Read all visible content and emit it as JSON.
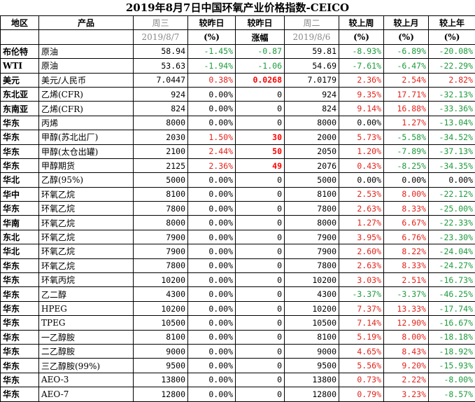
{
  "title": "2019年8月7日中国环氧产业价格指数-CEICO",
  "header": {
    "row1": [
      "地区",
      "产品",
      "周三",
      "较昨日",
      "较昨日",
      "周二",
      "较上周",
      "较上月",
      "较上年"
    ],
    "row2": [
      "",
      "",
      "2019/8/7",
      "(%)",
      "涨幅",
      "2019/8/6",
      "(%)",
      "(%)",
      "(%)"
    ]
  },
  "colors": {
    "up": "#e3231b",
    "down": "#1d9b3c",
    "flat": "#000000",
    "header_gray": "#8a8a8a"
  },
  "rows": [
    {
      "region": "布伦特",
      "product": "原油",
      "price": "58.94",
      "dod_pct": "-1.45%",
      "dod_pct_c": "green",
      "dod_chg": "-0.87",
      "dod_chg_c": "green",
      "prev": "59.81",
      "wow": "-8.93%",
      "wow_c": "green",
      "mom": "-6.89%",
      "mom_c": "green",
      "yoy": "-20.08%",
      "yoy_c": "green"
    },
    {
      "region": "WTI",
      "product": "原油",
      "price": "53.63",
      "dod_pct": "-1.94%",
      "dod_pct_c": "green",
      "dod_chg": "-1.06",
      "dod_chg_c": "green",
      "prev": "54.69",
      "wow": "-7.61%",
      "wow_c": "green",
      "mom": "-6.47%",
      "mom_c": "green",
      "yoy": "-22.29%",
      "yoy_c": "green"
    },
    {
      "region": "美元",
      "product": "美元/人民币",
      "price": "7.0447",
      "dod_pct": "0.38%",
      "dod_pct_c": "red",
      "dod_chg": "0.0268",
      "dod_chg_c": "bigred",
      "prev": "7.0179",
      "wow": "2.36%",
      "wow_c": "red",
      "mom": "2.54%",
      "mom_c": "red",
      "yoy": "2.82%",
      "yoy_c": "red"
    },
    {
      "region": "东北亚",
      "product": "乙烯(CFR)",
      "price": "924",
      "dod_pct": "0.00%",
      "dod_pct_c": "black",
      "dod_chg": "0",
      "dod_chg_c": "black",
      "prev": "924",
      "wow": "9.35%",
      "wow_c": "red",
      "mom": "17.71%",
      "mom_c": "red",
      "yoy": "-32.13%",
      "yoy_c": "green"
    },
    {
      "region": "东南亚",
      "product": "乙烯(CFR)",
      "price": "824",
      "dod_pct": "0.00%",
      "dod_pct_c": "black",
      "dod_chg": "0",
      "dod_chg_c": "black",
      "prev": "824",
      "wow": "9.14%",
      "wow_c": "red",
      "mom": "16.88%",
      "mom_c": "red",
      "yoy": "-33.36%",
      "yoy_c": "green"
    },
    {
      "region": "华东",
      "product": "丙烯",
      "price": "8000",
      "dod_pct": "0.00%",
      "dod_pct_c": "black",
      "dod_chg": "0",
      "dod_chg_c": "black",
      "prev": "8000",
      "wow": "0.00%",
      "wow_c": "black",
      "mom": "1.27%",
      "mom_c": "red",
      "yoy": "-13.04%",
      "yoy_c": "green"
    },
    {
      "region": "华东",
      "product": "甲醇(苏北出厂)",
      "price": "2030",
      "dod_pct": "1.50%",
      "dod_pct_c": "red",
      "dod_chg": "30",
      "dod_chg_c": "bigred",
      "prev": "2000",
      "wow": "5.73%",
      "wow_c": "red",
      "mom": "-5.58%",
      "mom_c": "green",
      "yoy": "-34.52%",
      "yoy_c": "green"
    },
    {
      "region": "华东",
      "product": "甲醇(太仓出罐)",
      "price": "2100",
      "dod_pct": "2.44%",
      "dod_pct_c": "red",
      "dod_chg": "50",
      "dod_chg_c": "bigred",
      "prev": "2050",
      "wow": "1.20%",
      "wow_c": "red",
      "mom": "-7.89%",
      "mom_c": "green",
      "yoy": "-37.13%",
      "yoy_c": "green"
    },
    {
      "region": "华东",
      "product": "甲醇期货",
      "price": "2125",
      "dod_pct": "2.36%",
      "dod_pct_c": "red",
      "dod_chg": "49",
      "dod_chg_c": "bigred",
      "prev": "2076",
      "wow": "0.43%",
      "wow_c": "red",
      "mom": "-8.25%",
      "mom_c": "green",
      "yoy": "-34.35%",
      "yoy_c": "green"
    },
    {
      "region": "华北",
      "product": "乙醇(95%)",
      "price": "5000",
      "dod_pct": "0.00%",
      "dod_pct_c": "black",
      "dod_chg": "0",
      "dod_chg_c": "black",
      "prev": "5000",
      "wow": "0.00%",
      "wow_c": "black",
      "mom": "0.00%",
      "mom_c": "black",
      "yoy": "0.00%",
      "yoy_c": "black"
    },
    {
      "region": "华中",
      "product": "环氧乙烷",
      "price": "8100",
      "dod_pct": "0.00%",
      "dod_pct_c": "black",
      "dod_chg": "0",
      "dod_chg_c": "black",
      "prev": "8100",
      "wow": "2.53%",
      "wow_c": "red",
      "mom": "8.00%",
      "mom_c": "red",
      "yoy": "-22.12%",
      "yoy_c": "green"
    },
    {
      "region": "华东",
      "product": "环氧乙烷",
      "price": "7800",
      "dod_pct": "0.00%",
      "dod_pct_c": "black",
      "dod_chg": "0",
      "dod_chg_c": "black",
      "prev": "7800",
      "wow": "2.63%",
      "wow_c": "red",
      "mom": "8.33%",
      "mom_c": "red",
      "yoy": "-25.00%",
      "yoy_c": "green"
    },
    {
      "region": "华南",
      "product": "环氧乙烷",
      "price": "8000",
      "dod_pct": "0.00%",
      "dod_pct_c": "black",
      "dod_chg": "0",
      "dod_chg_c": "black",
      "prev": "8000",
      "wow": "1.27%",
      "wow_c": "red",
      "mom": "6.67%",
      "mom_c": "red",
      "yoy": "-22.33%",
      "yoy_c": "green"
    },
    {
      "region": "东北",
      "product": "环氧乙烷",
      "price": "7900",
      "dod_pct": "0.00%",
      "dod_pct_c": "black",
      "dod_chg": "0",
      "dod_chg_c": "black",
      "prev": "7900",
      "wow": "3.95%",
      "wow_c": "red",
      "mom": "6.76%",
      "mom_c": "red",
      "yoy": "-23.30%",
      "yoy_c": "green"
    },
    {
      "region": "华北",
      "product": "环氧乙烷",
      "price": "7900",
      "dod_pct": "0.00%",
      "dod_pct_c": "black",
      "dod_chg": "0",
      "dod_chg_c": "black",
      "prev": "7900",
      "wow": "2.60%",
      "wow_c": "red",
      "mom": "8.22%",
      "mom_c": "red",
      "yoy": "-24.04%",
      "yoy_c": "green"
    },
    {
      "region": "华东",
      "product": "环氧乙烷",
      "price": "7800",
      "dod_pct": "0.00%",
      "dod_pct_c": "black",
      "dod_chg": "0",
      "dod_chg_c": "black",
      "prev": "7800",
      "wow": "2.63%",
      "wow_c": "red",
      "mom": "8.33%",
      "mom_c": "red",
      "yoy": "-24.27%",
      "yoy_c": "green"
    },
    {
      "region": "华东",
      "product": "环氧丙烷",
      "price": "10200",
      "dod_pct": "0.00%",
      "dod_pct_c": "black",
      "dod_chg": "0",
      "dod_chg_c": "black",
      "prev": "10200",
      "wow": "3.03%",
      "wow_c": "red",
      "mom": "2.51%",
      "mom_c": "red",
      "yoy": "-16.73%",
      "yoy_c": "green"
    },
    {
      "region": "华东",
      "product": "乙二醇",
      "price": "4300",
      "dod_pct": "0.00%",
      "dod_pct_c": "black",
      "dod_chg": "0",
      "dod_chg_c": "black",
      "prev": "4300",
      "wow": "-3.37%",
      "wow_c": "green",
      "mom": "-3.37%",
      "mom_c": "green",
      "yoy": "-46.25%",
      "yoy_c": "green"
    },
    {
      "region": "华东",
      "product": "HPEG",
      "price": "10200",
      "dod_pct": "0.00%",
      "dod_pct_c": "black",
      "dod_chg": "0",
      "dod_chg_c": "black",
      "prev": "10200",
      "wow": "7.37%",
      "wow_c": "red",
      "mom": "13.33%",
      "mom_c": "red",
      "yoy": "-17.74%",
      "yoy_c": "green"
    },
    {
      "region": "华东",
      "product": "TPEG",
      "price": "10500",
      "dod_pct": "0.00%",
      "dod_pct_c": "black",
      "dod_chg": "0",
      "dod_chg_c": "black",
      "prev": "10500",
      "wow": "7.14%",
      "wow_c": "red",
      "mom": "12.90%",
      "mom_c": "red",
      "yoy": "-16.67%",
      "yoy_c": "green"
    },
    {
      "region": "华东",
      "product": "一乙醇胺",
      "price": "8100",
      "dod_pct": "0.00%",
      "dod_pct_c": "black",
      "dod_chg": "0",
      "dod_chg_c": "black",
      "prev": "8100",
      "wow": "5.19%",
      "wow_c": "red",
      "mom": "8.00%",
      "mom_c": "red",
      "yoy": "-18.18%",
      "yoy_c": "green"
    },
    {
      "region": "华东",
      "product": "二乙醇胺",
      "price": "9000",
      "dod_pct": "0.00%",
      "dod_pct_c": "black",
      "dod_chg": "0",
      "dod_chg_c": "black",
      "prev": "9000",
      "wow": "4.65%",
      "wow_c": "red",
      "mom": "8.43%",
      "mom_c": "red",
      "yoy": "-18.92%",
      "yoy_c": "green"
    },
    {
      "region": "华东",
      "product": "三乙醇胺(99%)",
      "price": "9500",
      "dod_pct": "0.00%",
      "dod_pct_c": "black",
      "dod_chg": "0",
      "dod_chg_c": "black",
      "prev": "9500",
      "wow": "5.56%",
      "wow_c": "red",
      "mom": "9.20%",
      "mom_c": "red",
      "yoy": "-15.93%",
      "yoy_c": "green"
    },
    {
      "region": "华东",
      "product": "AEO-3",
      "price": "13800",
      "dod_pct": "0.00%",
      "dod_pct_c": "black",
      "dod_chg": "0",
      "dod_chg_c": "black",
      "prev": "13800",
      "wow": "0.73%",
      "wow_c": "red",
      "mom": "2.22%",
      "mom_c": "red",
      "yoy": "-8.00%",
      "yoy_c": "green"
    },
    {
      "region": "华东",
      "product": "AEO-7",
      "price": "12800",
      "dod_pct": "0.00%",
      "dod_pct_c": "black",
      "dod_chg": "0",
      "dod_chg_c": "black",
      "prev": "12800",
      "wow": "0.79%",
      "wow_c": "red",
      "mom": "3.23%",
      "mom_c": "red",
      "yoy": "-8.57%",
      "yoy_c": "green"
    }
  ]
}
